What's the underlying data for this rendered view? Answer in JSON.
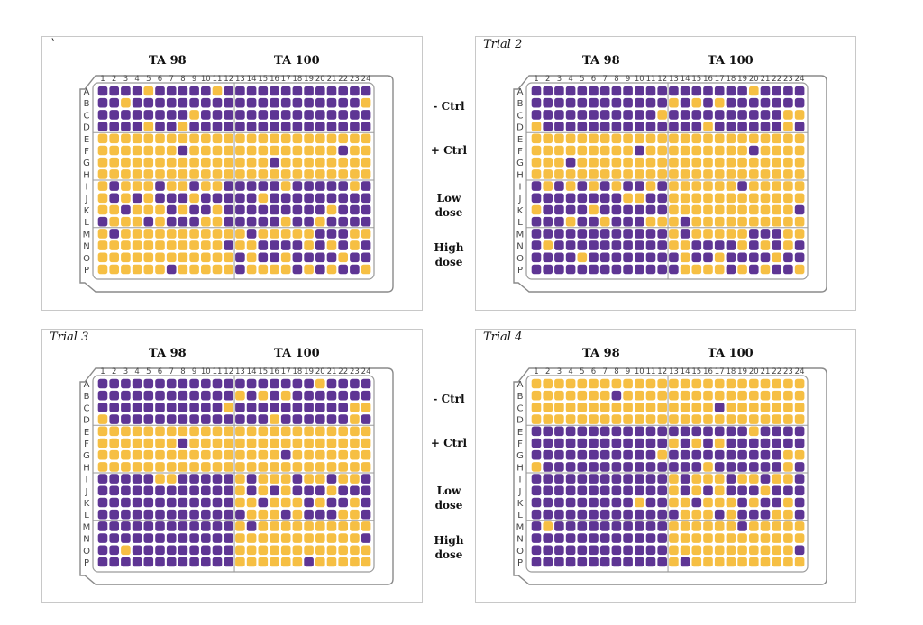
{
  "panels": [
    {
      "title": "`",
      "strain_left": "TA 98",
      "strain_right": "TA 100",
      "rows": [
        "PPPPYPPPPPYPPPPPPPPPPPPP",
        "PPYPPPPPPPPPPPPPPPPPPPPY",
        "PPPPPPPPYPPPPPPPPPPPPPPP",
        "PPPPYPPYPPPPPPPPPPPPPPPP",
        "YYYYYYYYYYYYYYYYYYYYYYYY",
        "YYYYYYYPYYYYYYYYYYYYYPYY",
        "YYYYYYYYYYYYYYYPYYYYYYYY",
        "YYYYYYYYYYYYYYYYYYYYYYYY",
        "YPYYYPYYPYYPPPPPYPPPPPYP",
        "YPYPYPPPYPPPPPYPPPPPPPPP",
        "YYPYYYPYPPYPPPPPPPPPYPPP",
        "PYYYPYPPPYYPPPPPYPPYPPPP",
        "YPYYYYYYYYYYYPYYYYYPPPYY",
        "YYYYYYYYYYYPYYPPPPYPYPYP",
        "YYYYYYYYYYYYPYPPYPPPPYPP",
        "YYYYYYPYYYYYPYYYYPYPYPPY"
      ]
    },
    {
      "title": "Trial 2",
      "strain_left": "TA 98",
      "strain_right": "TA 100",
      "rows": [
        "PPPPPPPPPPPPPPPPPPPYPPPP",
        "PPPPPPPPPPPPYPYPYPPPPPPP",
        "PPPPPPPPPPPYPPPPPPPPPPYY",
        "YPPPPPPPPPPPPPPYPPPPPPYP",
        "YYYYYYYYYYYYYYYYYYYYYYYY",
        "YYYYYYYYYPYYYYYYYYYPYYYY",
        "YYYPYYYYYYYYYYYYYYYYYYYY",
        "YYYYYYYYYYYYYYYYYYYYYYYY",
        "PYPYPYPYPPYPYYYYYYPYYYYY",
        "PPPPPPPPYYPPYYYYYYYYYYYY",
        "YPPPPYPPPPPPYYYYYYYYYYYP",
        "PPPYPPYPPPYYYPYYYYYYYYYY",
        "PPPPPPPPPPPPYPYYYYYPPPYY",
        "PYPPPPPPPPPPYYPPPPYPYPYP",
        "PPPPYPPPPPPPPYPPYPPPPYPP",
        "PPPPPPPPPPPPPYYYYPYPYPPY"
      ]
    },
    {
      "title": "Trial 3",
      "strain_left": "TA 98",
      "strain_right": "TA 100",
      "rows": [
        "PPPPPPPPPPPPPPPPPPPYPPPP",
        "PPPPPPPPPPPPYPYPYPPPPPPP",
        "PPPPPPPPPPPYPPPPPPPPPPYY",
        "YPPPPPPPPPPPPPPYPPPPPPYP",
        "YYYYYYYYYYYYYYYYYYYYYYYY",
        "YYYYYYYPYYYYYYYYYYYYYYYY",
        "YYYYYYYYYYYYYYYYPYYYYYYY",
        "YYYYYYYYYYYYYYYYYYYYYYYY",
        "PPPPPYYPPPPPYPYYYPYYPYYP",
        "PPPPPPPPPPPPYPYPYPPPYPPP",
        "PPPPPPPPPPPPYYPYYYPYPPYP",
        "PPPPPPPPPPPPPYYYPYPPPYYP",
        "PPPPPPPPPPPPYPYYYYYYYYYY",
        "PPPPPPPPPPPPYYYYYYYYYYYP",
        "PPYPPPPPPPPPYYYYYYYYYYYY",
        "PPPPPPPPPPPPYYYYYYPYYYYY"
      ]
    },
    {
      "title": "Trial 4",
      "strain_left": "TA 98",
      "strain_right": "TA 100",
      "rows": [
        "YYYYYYYYYYYYYYYYYYYYYYYY",
        "YYYYYYYPYYYYYYYYYYYYYYYY",
        "YYYYYYYYYYYYYYYYPYYYYYYY",
        "YYYYYYYYYYYYYYYYYYYYYYYY",
        "PPPPPPPPPPPPPPPPPPPYPPPP",
        "PPPPPPPPPPPPYPYPYPPPPPPP",
        "PPPPPPPPPPPYPPPPPPPPPPYY",
        "YPPPPPPPPPPPPPPYPPPPPPYP",
        "PPPPPPPPPPPPYPYYYPYYPYYP",
        "PPPPPPPPPPPPYPYPYPPPYPPP",
        "PPPPPPPPPYPPYYPYYYPYPPYP",
        "PPPPPPPPPPPPPYYYPYPPPYYP",
        "PYPPPPPPPPPPYYYYYYPYYYYY",
        "PPPPPPPPPPPPYYYYYYYYYYYY",
        "PPPPPPPPPPPPYYYYYYYYYYYP",
        "PPPPPPPPPPPPYPYYYYYYYYYY"
      ]
    }
  ],
  "row_labels": [
    "A",
    "B",
    "C",
    "D",
    "E",
    "F",
    "G",
    "H",
    "I",
    "J",
    "K",
    "L",
    "M",
    "N",
    "O",
    "P"
  ],
  "col_labels": [
    "1",
    "2",
    "3",
    "4",
    "5",
    "6",
    "7",
    "8",
    "9",
    "10",
    "11",
    "12",
    "13",
    "14",
    "15",
    "16",
    "17",
    "18",
    "19",
    "20",
    "21",
    "22",
    "23",
    "24"
  ],
  "side_labels": [
    {
      "line1": "- Ctrl",
      "line2": ""
    },
    {
      "line1": "+ Ctrl",
      "line2": ""
    },
    {
      "line1": "Low",
      "line2": "dose"
    },
    {
      "line1": "High",
      "line2": "dose"
    }
  ],
  "legend_colors": {
    "P": "#5e3594",
    "Y": "#f6bf43"
  }
}
